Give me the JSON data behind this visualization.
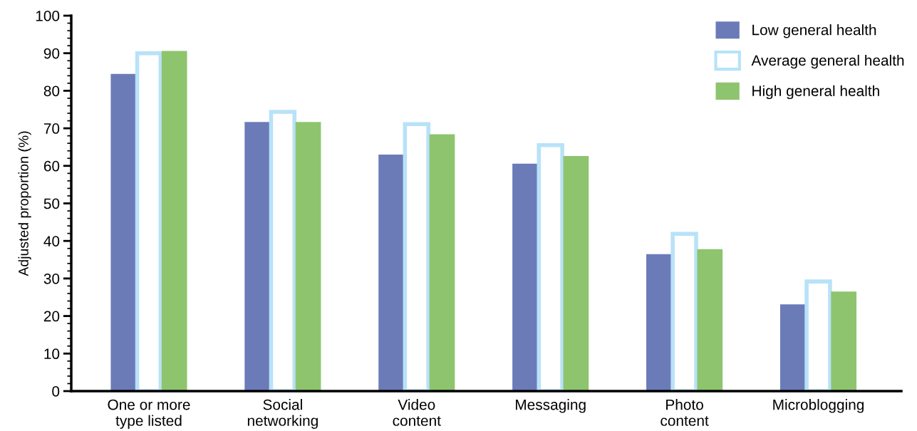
{
  "chart_data": {
    "type": "bar",
    "ylabel": "Adjusted proportion (%)",
    "categories": [
      "One or more\ntype listed",
      "Social\nnetworking",
      "Video\ncontent",
      "Messaging",
      "Photo\ncontent",
      "Microblogging"
    ],
    "series": [
      {
        "name": "Low general health",
        "color": "#6b7bb8",
        "values": [
          84.5,
          71.7,
          63.0,
          60.6,
          36.5,
          23.1
        ]
      },
      {
        "name": "Average general health",
        "color": "#b8e2f8",
        "values": [
          90.0,
          74.4,
          71.1,
          65.5,
          41.9,
          29.2
        ]
      },
      {
        "name": "High general health",
        "color": "#8ec46e",
        "values": [
          90.6,
          71.7,
          68.4,
          62.6,
          37.8,
          26.5
        ]
      }
    ],
    "ylim": [
      0,
      100
    ],
    "yticks": [
      0,
      10,
      20,
      30,
      40,
      50,
      60,
      70,
      80,
      90,
      100
    ],
    "grid": false,
    "legend": "top right"
  }
}
